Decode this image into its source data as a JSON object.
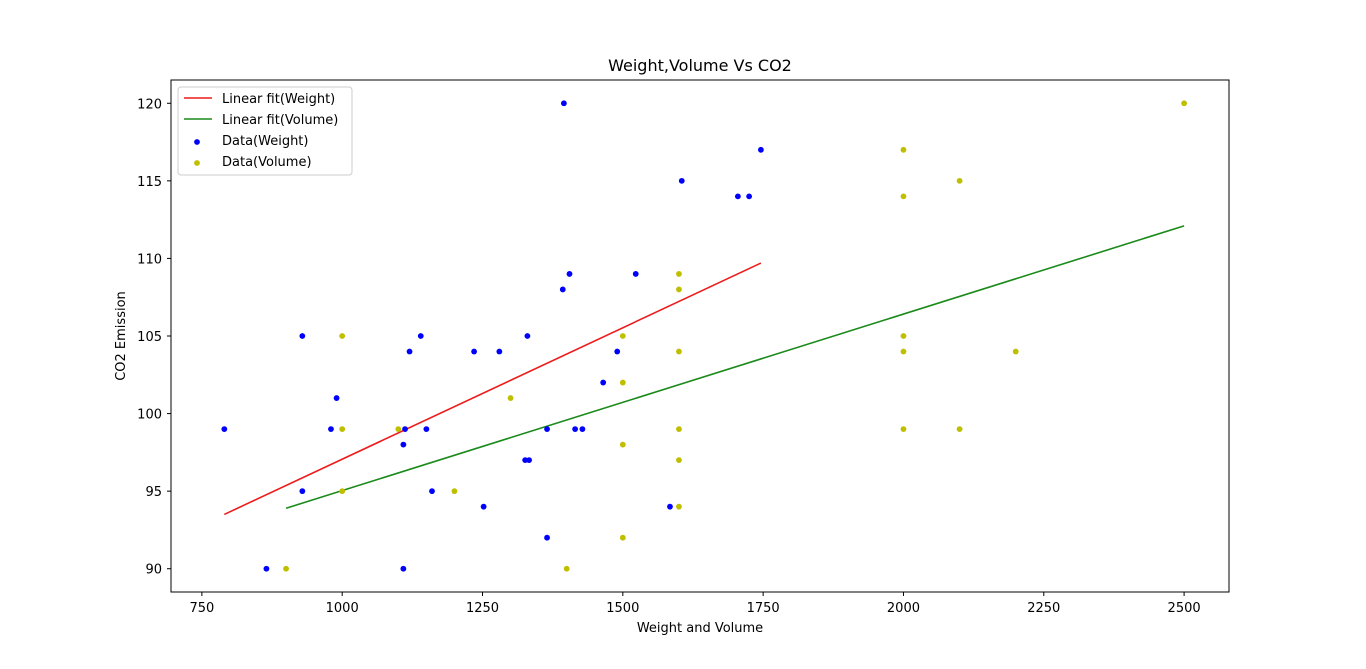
{
  "chart_data": {
    "type": "scatter",
    "title": "Weight,Volume Vs CO2",
    "xlabel": "Weight and Volume",
    "ylabel": "CO2 Emission",
    "xlim": [
      695,
      2580
    ],
    "ylim": [
      88.5,
      121.5
    ],
    "x_ticks": [
      750,
      1000,
      1250,
      1500,
      1750,
      2000,
      2250,
      2500
    ],
    "y_ticks": [
      90,
      95,
      100,
      105,
      110,
      115,
      120
    ],
    "x_tick_labels": [
      "750",
      "1000",
      "1250",
      "1500",
      "1750",
      "2000",
      "2250",
      "2500"
    ],
    "y_tick_labels": [
      "90",
      "95",
      "100",
      "105",
      "110",
      "115",
      "120"
    ],
    "grid": false,
    "legend_position": "top-left",
    "colors": {
      "weight_fit": "#ee1c1c",
      "volume_fit": "#1a8a1a",
      "weight_data": "#0000ff",
      "volume_data": "#bfbf00",
      "axes": "#000000",
      "background": "#ffffff"
    },
    "series": [
      {
        "name": "Linear fit(Weight)",
        "kind": "line",
        "color_key": "weight_fit",
        "points": [
          [
            790,
            93.5
          ],
          [
            1746,
            109.7
          ]
        ]
      },
      {
        "name": "Linear fit(Volume)",
        "kind": "line",
        "color_key": "volume_fit",
        "points": [
          [
            900,
            93.9
          ],
          [
            2500,
            112.1
          ]
        ]
      },
      {
        "name": "Data(Weight)",
        "kind": "scatter",
        "color_key": "weight_data",
        "points": [
          [
            790,
            99
          ],
          [
            865,
            90
          ],
          [
            929,
            95
          ],
          [
            929,
            105
          ],
          [
            990,
            101
          ],
          [
            980,
            99
          ],
          [
            1112,
            99
          ],
          [
            1109,
            98
          ],
          [
            1120,
            104
          ],
          [
            1140,
            105
          ],
          [
            1150,
            99
          ],
          [
            1109,
            90
          ],
          [
            1160,
            95
          ],
          [
            1235,
            104
          ],
          [
            1252,
            94
          ],
          [
            1280,
            104
          ],
          [
            1330,
            105
          ],
          [
            1326,
            97
          ],
          [
            1333,
            97
          ],
          [
            1365,
            99
          ],
          [
            1365,
            92
          ],
          [
            1395,
            120
          ],
          [
            1393,
            108
          ],
          [
            1405,
            109
          ],
          [
            1415,
            99
          ],
          [
            1428,
            99
          ],
          [
            1465,
            102
          ],
          [
            1490,
            104
          ],
          [
            1523,
            109
          ],
          [
            1584,
            94
          ],
          [
            1605,
            115
          ],
          [
            1705,
            114
          ],
          [
            1725,
            114
          ],
          [
            1746,
            117
          ]
        ]
      },
      {
        "name": "Data(Volume)",
        "kind": "scatter",
        "color_key": "volume_data",
        "points": [
          [
            900,
            90
          ],
          [
            1000,
            95
          ],
          [
            1000,
            99
          ],
          [
            1000,
            105
          ],
          [
            1100,
            99
          ],
          [
            1200,
            95
          ],
          [
            1300,
            101
          ],
          [
            1400,
            90
          ],
          [
            1500,
            102
          ],
          [
            1500,
            98
          ],
          [
            1500,
            105
          ],
          [
            1500,
            92
          ],
          [
            1600,
            104
          ],
          [
            1600,
            99
          ],
          [
            1600,
            109
          ],
          [
            1600,
            108
          ],
          [
            1600,
            97
          ],
          [
            1600,
            94
          ],
          [
            2000,
            117
          ],
          [
            2000,
            114
          ],
          [
            2000,
            105
          ],
          [
            2000,
            104
          ],
          [
            2000,
            99
          ],
          [
            2100,
            115
          ],
          [
            2100,
            99
          ],
          [
            2200,
            104
          ],
          [
            2500,
            120
          ]
        ]
      }
    ]
  }
}
